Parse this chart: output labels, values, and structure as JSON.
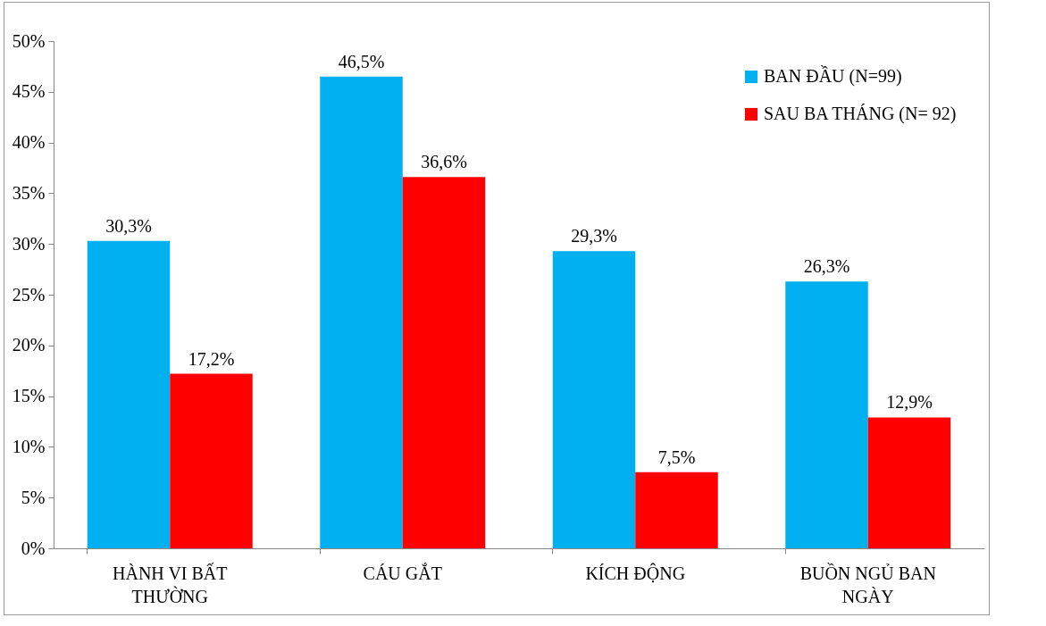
{
  "chart_data": {
    "type": "bar",
    "categories": [
      "HÀNH VI BẤT THƯỜNG",
      "CÁU GẮT",
      "KÍCH ĐỘNG",
      "BUỒN NGỦ BAN NGÀY"
    ],
    "series": [
      {
        "name": "BAN ĐẦU (N=99)",
        "color": "#00b0f0",
        "values": [
          30.3,
          46.5,
          29.3,
          26.3
        ],
        "value_labels": [
          "30,3%",
          "46,5%",
          "29,3%",
          "26,3%"
        ]
      },
      {
        "name": "SAU BA THÁNG (N= 92)",
        "color": "#ff0000",
        "values": [
          17.2,
          36.6,
          7.5,
          12.9
        ],
        "value_labels": [
          "17,2%",
          "36,6%",
          "7,5%",
          "12,9%"
        ]
      }
    ],
    "ylim": [
      0,
      50
    ],
    "yticks": [
      {
        "value": 0,
        "label": "0%"
      },
      {
        "value": 5,
        "label": "5%"
      },
      {
        "value": 10,
        "label": "10%"
      },
      {
        "value": 15,
        "label": "15%"
      },
      {
        "value": 20,
        "label": "20%"
      },
      {
        "value": 25,
        "label": "25%"
      },
      {
        "value": 30,
        "label": "30%"
      },
      {
        "value": 35,
        "label": "35%"
      },
      {
        "value": 40,
        "label": "40%"
      },
      {
        "value": 45,
        "label": "45%"
      },
      {
        "value": 50,
        "label": "50%"
      }
    ],
    "grid": false,
    "legend": "top right"
  }
}
